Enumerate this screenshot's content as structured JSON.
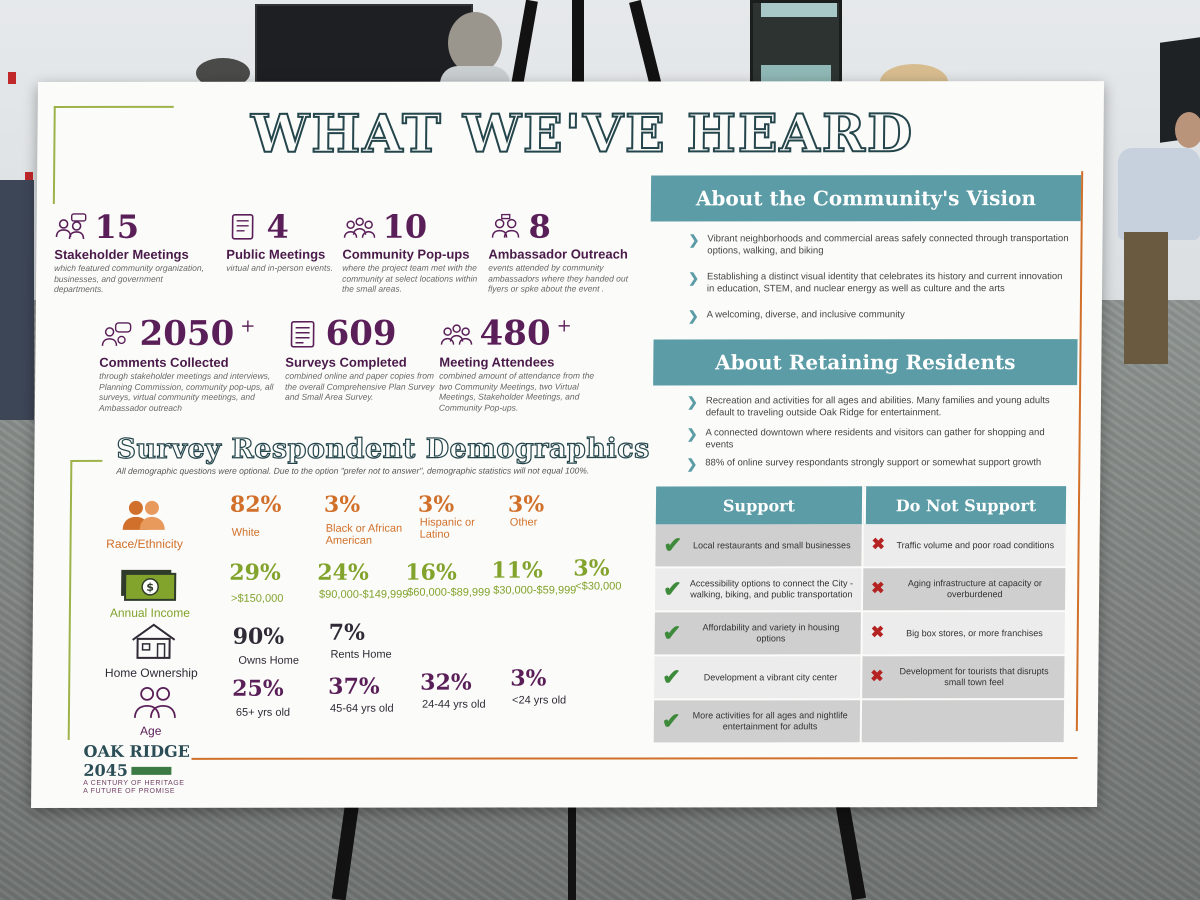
{
  "poster": {
    "title": "WHAT WE'VE HEARD",
    "stats": [
      {
        "number": "15",
        "plus": "",
        "label": "Stakeholder Meetings",
        "description": "which featured community organization, businesses, and government departments.",
        "icon": "meeting-group-icon"
      },
      {
        "number": "4",
        "plus": "",
        "label": "Public Meetings",
        "description": "virtual and in-person events.",
        "icon": "document-icon"
      },
      {
        "number": "10",
        "plus": "",
        "label": "Community Pop-ups",
        "description": "where the project team met with the community at select locations within the small areas.",
        "icon": "people-group-icon"
      },
      {
        "number": "8",
        "plus": "",
        "label": "Ambassador Outreach",
        "description": "events attended by community ambassadors where they handed out flyers or spke about the event .",
        "icon": "ambassador-icon"
      },
      {
        "number": "2050",
        "plus": "+",
        "label": "Comments Collected",
        "description": "through stakeholder meetings and interviews, Planning Commission, community pop-ups, all surveys, virtual community meetings, and Ambassador outreach",
        "icon": "comment-icon"
      },
      {
        "number": "609",
        "plus": "",
        "label": "Surveys Completed",
        "description": "combined online and paper copies from the overall Comprehensive Plan Survey and Small Area Survey.",
        "icon": "survey-icon"
      },
      {
        "number": "480",
        "plus": "+",
        "label": "Meeting Attendees",
        "description": "combined amount of attendance from the two Community Meetings, two Virtual Meetings, Stakeholder Meetings, and Community Pop-ups.",
        "icon": "attendees-icon"
      }
    ],
    "demographics": {
      "title": "Survey Respondent Demographics",
      "note": "All demographic questions were optional. Due to the option \"prefer not to answer\", demographic statistics will not equal 100%.",
      "race": {
        "label": "Race/Ethnicity",
        "items": [
          {
            "pct": "82%",
            "label": "White"
          },
          {
            "pct": "3%",
            "label": "Black or African American"
          },
          {
            "pct": "3%",
            "label": "Hispanic or Latino"
          },
          {
            "pct": "3%",
            "label": "Other"
          }
        ]
      },
      "income": {
        "label": "Annual Income",
        "items": [
          {
            "pct": "29%",
            "label": ">$150,000"
          },
          {
            "pct": "24%",
            "label": "$90,000-$149,999"
          },
          {
            "pct": "16%",
            "label": "$60,000-$89,999"
          },
          {
            "pct": "11%",
            "label": "$30,000-$59,999"
          },
          {
            "pct": "3%",
            "label": "<$30,000"
          }
        ]
      },
      "home": {
        "label": "Home Ownership",
        "items": [
          {
            "pct": "90%",
            "label": "Owns Home"
          },
          {
            "pct": "7%",
            "label": "Rents Home"
          }
        ]
      },
      "age": {
        "label": "Age",
        "items": [
          {
            "pct": "25%",
            "label": "65+ yrs old"
          },
          {
            "pct": "37%",
            "label": "45-64 yrs old"
          },
          {
            "pct": "32%",
            "label": "24-44 yrs old"
          },
          {
            "pct": "3%",
            "label": "<24 yrs old"
          }
        ]
      }
    },
    "vision": {
      "title": "About the Community's Vision",
      "bullets": [
        "Vibrant neighborhoods and commercial areas safely connected through transportation options, walking, and biking",
        "Establishing a distinct visual identity that celebrates its history and current innovation in education, STEM, and nuclear energy as well as culture and the arts",
        "A welcoming, diverse, and inclusive community"
      ]
    },
    "retaining": {
      "title": "About Retaining Residents",
      "bullets": [
        "Recreation and activities for all ages and abilities. Many families and young adults default to traveling outside Oak Ridge for entertainment.",
        "A connected downtown where residents and visitors can gather for shopping and events",
        "88% of online survey respondants strongly support or somewhat support growth"
      ]
    },
    "support_table": {
      "support_header": "Support",
      "not_support_header": "Do Not Support",
      "support": [
        "Local restaurants and small businesses",
        "Accessibility options to connect the City - walking, biking, and public transportation",
        "Affordability and variety in housing options",
        "Development a vibrant city center",
        "More activities for all ages and nightlife entertainment for adults"
      ],
      "not_support": [
        "Traffic volume and poor road conditions",
        "Aging infrastructure at capacity or overburdened",
        "Big box stores, or more franchises",
        "Development for tourists that disrupts small town feel",
        ""
      ]
    },
    "logo": {
      "line1": "OAK RIDGE",
      "line2": "2045",
      "tagline1": "A CENTURY OF HERITAGE",
      "tagline2": "A FUTURE OF PROMISE"
    },
    "colors": {
      "teal": "#5c9ca6",
      "plum": "#5a1f58",
      "orange": "#d1702a",
      "green": "#82a32c",
      "check": "#3d8a3a",
      "cross": "#b52222"
    }
  }
}
